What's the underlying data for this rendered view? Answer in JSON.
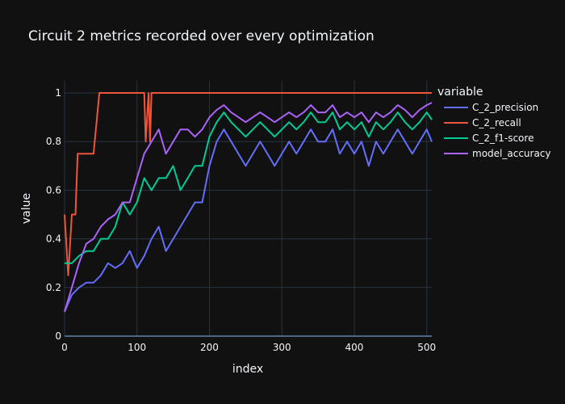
{
  "chart_data": {
    "type": "line",
    "title": "Circuit 2 metrics recorded over every optimization",
    "xlabel": "index",
    "ylabel": "value",
    "xlim": [
      0,
      507
    ],
    "ylim": [
      0,
      1.05
    ],
    "x_ticks": [
      0,
      100,
      200,
      300,
      400,
      500
    ],
    "y_ticks": [
      0,
      0.2,
      0.4,
      0.6,
      0.8,
      1
    ],
    "grid": true,
    "legend": {
      "title": "variable",
      "placement": "right"
    },
    "series": [
      {
        "name": "C_2_precision",
        "color": "#636efa",
        "x": [
          0,
          10,
          20,
          30,
          40,
          50,
          60,
          70,
          80,
          90,
          100,
          110,
          120,
          130,
          140,
          150,
          160,
          170,
          180,
          190,
          200,
          210,
          220,
          230,
          240,
          250,
          260,
          270,
          280,
          290,
          300,
          310,
          320,
          330,
          340,
          350,
          360,
          370,
          380,
          390,
          400,
          410,
          420,
          430,
          440,
          450,
          460,
          470,
          480,
          490,
          500,
          507
        ],
        "values": [
          0.1,
          0.17,
          0.2,
          0.22,
          0.22,
          0.25,
          0.3,
          0.28,
          0.3,
          0.35,
          0.28,
          0.33,
          0.4,
          0.45,
          0.35,
          0.4,
          0.45,
          0.5,
          0.55,
          0.55,
          0.7,
          0.8,
          0.85,
          0.8,
          0.75,
          0.7,
          0.75,
          0.8,
          0.75,
          0.7,
          0.75,
          0.8,
          0.75,
          0.8,
          0.85,
          0.8,
          0.8,
          0.85,
          0.75,
          0.8,
          0.75,
          0.8,
          0.7,
          0.8,
          0.75,
          0.8,
          0.85,
          0.8,
          0.75,
          0.8,
          0.85,
          0.8
        ]
      },
      {
        "name": "C_2_recall",
        "color": "#ef553b",
        "x": [
          0,
          5,
          10,
          15,
          18,
          22,
          30,
          40,
          48,
          50,
          60,
          100,
          110,
          112,
          116,
          118,
          120,
          200,
          300,
          400,
          507
        ],
        "values": [
          0.5,
          0.25,
          0.5,
          0.5,
          0.75,
          0.75,
          0.75,
          0.75,
          1,
          1,
          1,
          1,
          1,
          0.8,
          1,
          0.8,
          1,
          1,
          1,
          1,
          1
        ]
      },
      {
        "name": "C_2_f1-score",
        "color": "#00cc96",
        "x": [
          0,
          10,
          20,
          30,
          40,
          50,
          60,
          70,
          80,
          90,
          100,
          110,
          120,
          130,
          140,
          150,
          160,
          170,
          180,
          190,
          200,
          210,
          220,
          230,
          240,
          250,
          260,
          270,
          280,
          290,
          300,
          310,
          320,
          330,
          340,
          350,
          360,
          370,
          380,
          390,
          400,
          410,
          420,
          430,
          440,
          450,
          460,
          470,
          480,
          490,
          500,
          507
        ],
        "values": [
          0.3,
          0.3,
          0.33,
          0.35,
          0.35,
          0.4,
          0.4,
          0.45,
          0.55,
          0.5,
          0.55,
          0.65,
          0.6,
          0.65,
          0.65,
          0.7,
          0.6,
          0.65,
          0.7,
          0.7,
          0.82,
          0.88,
          0.92,
          0.88,
          0.85,
          0.82,
          0.85,
          0.88,
          0.85,
          0.82,
          0.85,
          0.88,
          0.85,
          0.88,
          0.92,
          0.88,
          0.88,
          0.92,
          0.85,
          0.88,
          0.85,
          0.88,
          0.82,
          0.88,
          0.85,
          0.88,
          0.92,
          0.88,
          0.85,
          0.88,
          0.92,
          0.89
        ]
      },
      {
        "name": "model_accuracy",
        "color": "#ab63fa",
        "x": [
          0,
          10,
          20,
          30,
          40,
          50,
          60,
          70,
          80,
          90,
          100,
          110,
          120,
          130,
          140,
          150,
          160,
          170,
          180,
          190,
          200,
          210,
          220,
          230,
          240,
          250,
          260,
          270,
          280,
          290,
          300,
          310,
          320,
          330,
          340,
          350,
          360,
          370,
          380,
          390,
          400,
          410,
          420,
          430,
          440,
          450,
          460,
          470,
          480,
          490,
          500,
          507
        ],
        "values": [
          0.1,
          0.2,
          0.3,
          0.38,
          0.4,
          0.45,
          0.48,
          0.5,
          0.55,
          0.55,
          0.65,
          0.75,
          0.8,
          0.85,
          0.75,
          0.8,
          0.85,
          0.85,
          0.82,
          0.85,
          0.9,
          0.93,
          0.95,
          0.92,
          0.9,
          0.88,
          0.9,
          0.92,
          0.9,
          0.88,
          0.9,
          0.92,
          0.9,
          0.92,
          0.95,
          0.92,
          0.92,
          0.95,
          0.9,
          0.92,
          0.9,
          0.92,
          0.88,
          0.92,
          0.9,
          0.92,
          0.95,
          0.93,
          0.9,
          0.93,
          0.95,
          0.96
        ]
      }
    ]
  }
}
